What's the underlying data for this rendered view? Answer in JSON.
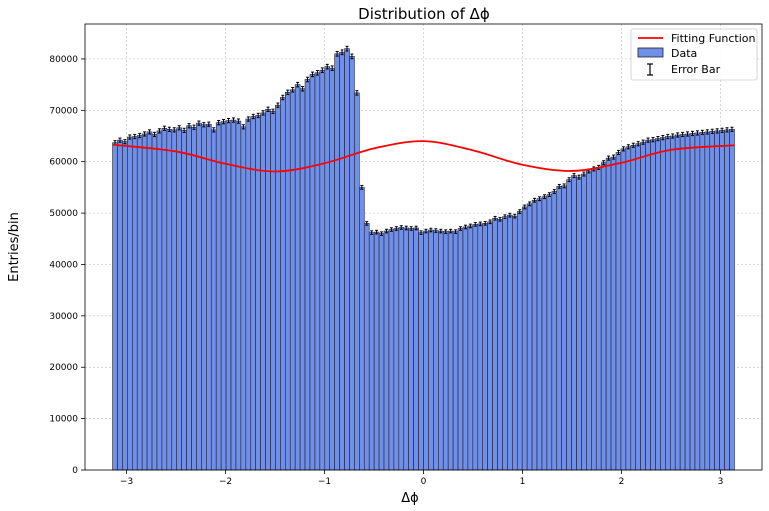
{
  "chart_data": {
    "type": "bar",
    "title": "Distribution of Δϕ",
    "xlabel": "Δϕ",
    "ylabel": "Entries/bin",
    "xlim": [
      -3.42,
      3.42
    ],
    "ylim": [
      0,
      86800
    ],
    "xticks": [
      -3,
      -2,
      -1,
      0,
      1,
      2,
      3
    ],
    "xtick_labels": [
      "−3",
      "−2",
      "−1",
      "0",
      "1",
      "2",
      "3"
    ],
    "yticks": [
      0,
      10000,
      20000,
      30000,
      40000,
      50000,
      60000,
      70000,
      80000
    ],
    "ytick_labels": [
      "0",
      "10000",
      "20000",
      "30000",
      "40000",
      "50000",
      "60000",
      "70000",
      "80000"
    ],
    "grid": true,
    "legend_position": "top-right",
    "colors": {
      "bars": "#7090e8",
      "bar_edge": "#1f1f3a",
      "fit": "#ff0000",
      "error": "#000000"
    },
    "bins": {
      "x_min": -3.14159,
      "x_max": 3.14159,
      "count": 126
    },
    "series": [
      {
        "name": "Data",
        "kind": "histogram",
        "values": [
          63700,
          64200,
          63900,
          64800,
          64900,
          65100,
          65400,
          65800,
          65300,
          66000,
          66500,
          66300,
          66200,
          66600,
          66100,
          67000,
          66700,
          67500,
          67200,
          67300,
          66200,
          67600,
          67800,
          68000,
          68100,
          67900,
          66800,
          68300,
          68800,
          69000,
          69500,
          70200,
          69800,
          71000,
          72500,
          73500,
          74000,
          75000,
          74200,
          76000,
          77000,
          77300,
          77800,
          78500,
          78200,
          81000,
          81300,
          82000,
          80500,
          73400,
          55000,
          48000,
          46200,
          46300,
          46000,
          46500,
          46800,
          47000,
          47200,
          47100,
          47000,
          47100,
          46200,
          46500,
          46700,
          46600,
          46500,
          46400,
          46500,
          46400,
          47000,
          47300,
          47500,
          47800,
          47900,
          48000,
          48300,
          49000,
          48800,
          49300,
          49600,
          49400,
          50300,
          51200,
          51800,
          52500,
          52800,
          53200,
          53600,
          54200,
          55200,
          55300,
          56500,
          57300,
          57000,
          57600,
          58200,
          58600,
          58900,
          59800,
          60700,
          60900,
          61800,
          62500,
          62900,
          63200,
          63500,
          63800,
          64200,
          64300,
          64500,
          64700,
          64900,
          65000,
          65200,
          65300,
          65400,
          65500,
          65600,
          65700,
          65800,
          65900,
          66000,
          66100,
          66200,
          66300
        ]
      },
      {
        "name": "Fitting Function",
        "kind": "line",
        "x": [
          -3.14,
          -2.5,
          -2.0,
          -1.5,
          -1.0,
          -0.5,
          0.0,
          0.5,
          1.0,
          1.5,
          2.0,
          2.5,
          3.14
        ],
        "values": [
          63300,
          62000,
          59600,
          58100,
          59700,
          62600,
          64000,
          62200,
          59400,
          58200,
          59800,
          62300,
          63200
        ]
      },
      {
        "name": "Error Bar",
        "kind": "errorbar"
      }
    ]
  }
}
